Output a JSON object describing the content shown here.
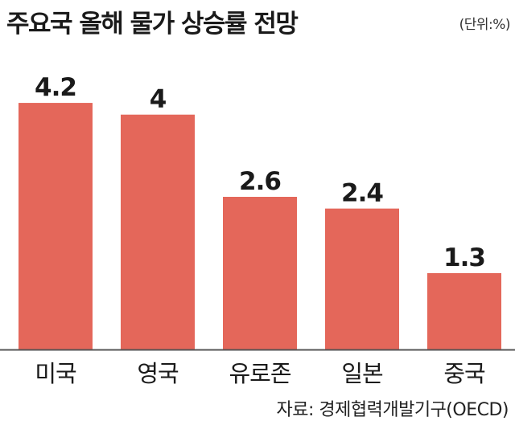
{
  "title": "주요국 올해 물가 상승률 전망",
  "unit": "(단위:%)",
  "source": "자료: 경제협력개발기구(OECD)",
  "colors": {
    "bar": "#e4675a",
    "axis": "#555555",
    "text": "#1a1a1a"
  },
  "chart_data": {
    "type": "bar",
    "title": "주요국 올해 물가 상승률 전망",
    "unit": "(단위:%)",
    "categories": [
      "미국",
      "영국",
      "유로존",
      "일본",
      "중국"
    ],
    "values": [
      4.2,
      4,
      2.6,
      2.4,
      1.3
    ],
    "value_labels": [
      "4.2",
      "4",
      "2.6",
      "2.4",
      "1.3"
    ],
    "ylim": [
      0,
      5.2
    ],
    "grid": false,
    "legend": "none"
  }
}
